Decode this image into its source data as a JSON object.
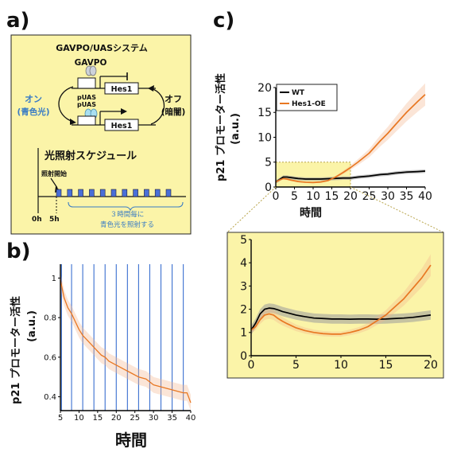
{
  "panel_a": {
    "label": "a)",
    "system_title": "GAVPO/UASシステム",
    "protein_label": "GAVPO",
    "promoter_label": "pUAS",
    "gene_label": "Hes1",
    "on_label": "オン",
    "on_sub": "(青色光)",
    "off_label": "オフ",
    "off_sub": "(暗闇)",
    "schedule_title": "光照射スケジュール",
    "start_label": "照射開始",
    "t0_label": "0h",
    "t5_label": "5h",
    "note_line1": "３時間毎に",
    "note_line2": "青色光を照射する",
    "colors": {
      "panel_bg": "#fbf4a8",
      "light_blue": "#4a6fd8",
      "text_blue": "#3a7cc4"
    }
  },
  "panel_b": {
    "label": "b)",
    "ylabel": "p21 プロモーター活性",
    "ylabel_unit": "(a.u.)",
    "xlabel": "時間"
  },
  "panel_c": {
    "label": "c)",
    "ylabel": "p21 プロモーター活性",
    "ylabel_unit": "(a.u.)",
    "xlabel": "時間",
    "legend": [
      "WT",
      "Hes1-OE"
    ]
  },
  "chart_data": [
    {
      "id": "b",
      "type": "line",
      "xlim": [
        5,
        40
      ],
      "ylim": [
        0.33,
        1.07
      ],
      "x_ticks": [
        5,
        10,
        15,
        20,
        25,
        30,
        35,
        40
      ],
      "y_ticks": [
        0.4,
        0.6,
        0.8,
        1
      ],
      "light_pulses": [
        5.3,
        8,
        11,
        14,
        17,
        20,
        23,
        26,
        29,
        32,
        35,
        38
      ],
      "series": [
        {
          "color": "#e87722",
          "x": [
            5,
            6,
            7,
            8,
            9,
            10,
            11,
            12,
            13,
            14,
            15,
            16,
            17,
            18,
            19,
            20,
            22,
            24,
            26,
            28,
            30,
            32,
            34,
            36,
            38,
            39,
            40
          ],
          "y": [
            0.99,
            0.9,
            0.85,
            0.82,
            0.78,
            0.74,
            0.71,
            0.69,
            0.67,
            0.65,
            0.63,
            0.61,
            0.6,
            0.58,
            0.57,
            0.56,
            0.54,
            0.52,
            0.5,
            0.49,
            0.46,
            0.45,
            0.44,
            0.43,
            0.42,
            0.42,
            0.37
          ],
          "band": 0.04
        }
      ]
    },
    {
      "id": "c-main",
      "type": "line",
      "xlim": [
        0,
        40
      ],
      "ylim": [
        0,
        20
      ],
      "x_ticks": [
        0,
        5,
        10,
        15,
        20,
        25,
        30,
        35,
        40
      ],
      "y_ticks": [
        0,
        5,
        10,
        15,
        20
      ],
      "highlight_region": {
        "x": [
          0,
          20
        ],
        "y": [
          0,
          5
        ]
      },
      "legend_position": "top-left",
      "series": [
        {
          "name": "WT",
          "color": "#000000",
          "x": [
            0,
            1,
            2,
            3,
            4,
            6,
            8,
            10,
            12,
            15,
            18,
            20,
            22,
            25,
            28,
            30,
            32,
            35,
            38,
            40
          ],
          "y": [
            1,
            1.5,
            2.0,
            2.0,
            1.9,
            1.7,
            1.6,
            1.6,
            1.6,
            1.7,
            1.8,
            1.8,
            2.0,
            2.2,
            2.5,
            2.6,
            2.8,
            3.0,
            3.1,
            3.2
          ],
          "band": 0.35
        },
        {
          "name": "Hes1-OE",
          "color": "#e87722",
          "x": [
            0,
            1,
            2,
            3,
            4,
            6,
            8,
            10,
            12,
            14,
            16,
            18,
            20,
            22,
            25,
            28,
            30,
            32,
            35,
            38,
            40
          ],
          "y": [
            1,
            1.4,
            1.7,
            1.6,
            1.4,
            1.1,
            0.95,
            0.9,
            1.0,
            1.3,
            2.0,
            2.9,
            3.9,
            5.0,
            6.8,
            9.3,
            10.8,
            12.5,
            15.0,
            17.2,
            18.6
          ],
          "band_frac": 0.12
        }
      ]
    },
    {
      "id": "c-zoom",
      "type": "line",
      "xlim": [
        0,
        20
      ],
      "ylim": [
        0,
        5
      ],
      "x_ticks": [
        0,
        5,
        10,
        15,
        20
      ],
      "y_ticks": [
        0,
        1,
        2,
        3,
        4,
        5
      ],
      "series": [
        {
          "name": "WT",
          "color": "#000000",
          "x": [
            0,
            0.5,
            1,
            1.5,
            2,
            2.5,
            3,
            3.5,
            4,
            5,
            6,
            7,
            8,
            9,
            10,
            11,
            12,
            13,
            14,
            15,
            16,
            17,
            18,
            19,
            20
          ],
          "y": [
            1.1,
            1.4,
            1.8,
            2.0,
            2.05,
            2.03,
            1.97,
            1.9,
            1.85,
            1.75,
            1.68,
            1.62,
            1.6,
            1.58,
            1.58,
            1.57,
            1.58,
            1.58,
            1.57,
            1.58,
            1.6,
            1.62,
            1.65,
            1.7,
            1.75
          ],
          "band": 0.2
        },
        {
          "name": "Hes1-OE",
          "color": "#e87722",
          "x": [
            0,
            0.5,
            1,
            1.5,
            2,
            2.5,
            3,
            3.5,
            4,
            5,
            6,
            7,
            8,
            9,
            10,
            11,
            12,
            13,
            14,
            15,
            16,
            17,
            18,
            19,
            20
          ],
          "y": [
            1.1,
            1.25,
            1.55,
            1.75,
            1.8,
            1.75,
            1.6,
            1.48,
            1.38,
            1.2,
            1.08,
            1.0,
            0.95,
            0.93,
            0.93,
            1.0,
            1.1,
            1.25,
            1.5,
            1.75,
            2.1,
            2.45,
            2.9,
            3.35,
            3.9
          ],
          "band_frac": 0.12
        }
      ]
    }
  ]
}
